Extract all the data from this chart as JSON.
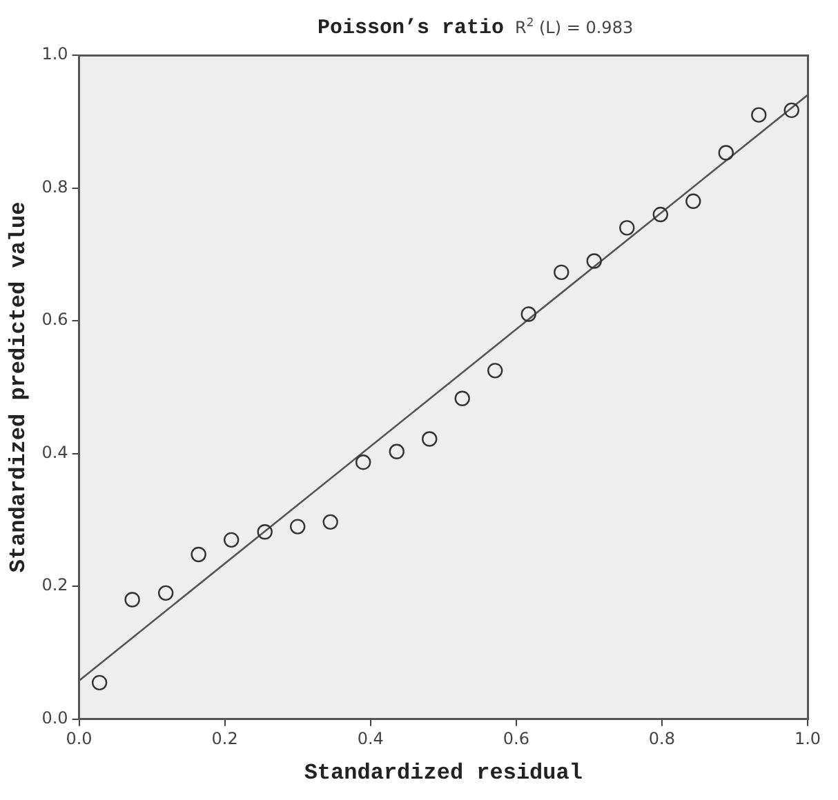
{
  "chart_data": {
    "type": "scatter",
    "title": "Poisson’s ratio",
    "annotations": [
      "R$^{2}$ (L) = 0.983"
    ],
    "xlabel": "Standardized residual",
    "ylabel": "Standardized predicted value",
    "xlim": [
      0,
      1
    ],
    "ylim": [
      0,
      1
    ],
    "xticks": [
      {
        "value": 0,
        "label": "0.0"
      },
      {
        "value": 0.2,
        "label": "0.2"
      },
      {
        "value": 0.4,
        "label": "0.4"
      },
      {
        "value": 0.6,
        "label": "0.6"
      },
      {
        "value": 0.8,
        "label": "0.8"
      },
      {
        "value": 1,
        "label": "1.0"
      }
    ],
    "yticks": [
      {
        "value": 0,
        "label": "0.0"
      },
      {
        "value": 0.2,
        "label": "0.2"
      },
      {
        "value": 0.4,
        "label": "0.4"
      },
      {
        "value": 0.6,
        "label": "0.6"
      },
      {
        "value": 0.8,
        "label": "0.8"
      },
      {
        "value": 1,
        "label": "1.0"
      }
    ],
    "grid": false,
    "legend": false,
    "marker": "circle",
    "series": [
      {
        "color": "#333333",
        "x": [
          0.028,
          0.073,
          0.119,
          0.164,
          0.209,
          0.255,
          0.3,
          0.345,
          0.39,
          0.436,
          0.481,
          0.526,
          0.571,
          0.617,
          0.662,
          0.707,
          0.752,
          0.798,
          0.843,
          0.888,
          0.933,
          0.978
        ],
        "values": [
          0.055,
          0.18,
          0.19,
          0.248,
          0.27,
          0.282,
          0.29,
          0.297,
          0.387,
          0.403,
          0.422,
          0.483,
          0.525,
          0.61,
          0.673,
          0.69,
          0.74,
          0.76,
          0.78,
          0.853,
          0.91,
          0.917
        ]
      },
      {
        "type": "line",
        "color": "#555555",
        "marker": "none",
        "line_style": "solid",
        "x": [
          0,
          1
        ],
        "values": [
          0.058,
          0.94
        ]
      }
    ]
  }
}
